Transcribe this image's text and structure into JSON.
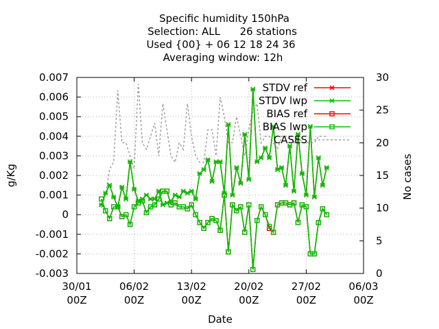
{
  "chart_data": {
    "type": "line",
    "title_lines": [
      "Specific humidity 150hPa",
      "Selection: ALL      26 stations",
      "Used {00} + 06 12 18 24 36",
      "Averaging window: 12h"
    ],
    "xlabel": "Date",
    "ylabel": "g/Kg",
    "y2label": "No cases",
    "x_range": [
      "2019-01-30T00:00",
      "2019-03-06T00:00"
    ],
    "ylim": [
      -0.003,
      0.007
    ],
    "y2lim": [
      0,
      30
    ],
    "x_ticks": [
      {
        "at": "2019-01-30T00:00",
        "line1": "30/01",
        "line2": "00Z"
      },
      {
        "at": "2019-02-06T00:00",
        "line1": "06/02",
        "line2": "00Z"
      },
      {
        "at": "2019-02-13T00:00",
        "line1": "13/02",
        "line2": "00Z"
      },
      {
        "at": "2019-02-20T00:00",
        "line1": "20/02",
        "line2": "00Z"
      },
      {
        "at": "2019-02-27T00:00",
        "line1": "27/02",
        "line2": "00Z"
      },
      {
        "at": "2019-03-06T00:00",
        "line1": "06/03",
        "line2": "00Z"
      }
    ],
    "y_ticks": [
      "-0.003",
      "-0.002",
      "-0.001",
      "0",
      "0.001",
      "0.002",
      "0.003",
      "0.004",
      "0.005",
      "0.006",
      "0.007"
    ],
    "y2_ticks": [
      "0",
      "5",
      "10",
      "15",
      "20",
      "25",
      "30"
    ],
    "grid": true,
    "legend_position": "top-right",
    "x": [
      "2019-02-02T00:00",
      "2019-02-02T12:00",
      "2019-02-03T00:00",
      "2019-02-03T12:00",
      "2019-02-04T00:00",
      "2019-02-04T12:00",
      "2019-02-05T00:00",
      "2019-02-05T12:00",
      "2019-02-06T00:00",
      "2019-02-06T12:00",
      "2019-02-07T00:00",
      "2019-02-07T12:00",
      "2019-02-08T00:00",
      "2019-02-08T12:00",
      "2019-02-09T00:00",
      "2019-02-09T12:00",
      "2019-02-10T00:00",
      "2019-02-10T12:00",
      "2019-02-11T00:00",
      "2019-02-11T12:00",
      "2019-02-12T00:00",
      "2019-02-12T12:00",
      "2019-02-13T00:00",
      "2019-02-13T12:00",
      "2019-02-14T00:00",
      "2019-02-14T12:00",
      "2019-02-15T00:00",
      "2019-02-15T12:00",
      "2019-02-16T00:00",
      "2019-02-16T12:00",
      "2019-02-17T00:00",
      "2019-02-17T12:00",
      "2019-02-18T00:00",
      "2019-02-18T12:00",
      "2019-02-19T00:00",
      "2019-02-19T12:00",
      "2019-02-20T00:00",
      "2019-02-20T12:00",
      "2019-02-21T00:00",
      "2019-02-21T12:00",
      "2019-02-22T00:00",
      "2019-02-22T12:00",
      "2019-02-23T00:00",
      "2019-02-23T12:00",
      "2019-02-24T00:00",
      "2019-02-24T12:00",
      "2019-02-25T00:00",
      "2019-02-25T12:00",
      "2019-02-26T00:00",
      "2019-02-26T12:00",
      "2019-02-27T00:00",
      "2019-02-27T12:00",
      "2019-02-28T00:00",
      "2019-02-28T12:00",
      "2019-03-01T00:00",
      "2019-03-01T12:00"
    ],
    "series": [
      {
        "name": "STDV ref",
        "color": "#ff0000",
        "marker": "asterisk",
        "axis": "y",
        "values": [
          0.0005,
          0.0011,
          0.0015,
          0.0009,
          0.0004,
          0.0014,
          0.0008,
          0.0027,
          0.0013,
          0.0007,
          0.0008,
          0.001,
          0.0008,
          0.0008,
          0.0012,
          0.0005,
          0.0006,
          0.0007,
          0.001,
          0.0009,
          0.0012,
          0.0011,
          0.0012,
          0.0008,
          0.0021,
          0.0023,
          0.0028,
          0.0017,
          0.0027,
          0.0027,
          0.0011,
          0.0046,
          0.001,
          0.0024,
          0.0016,
          0.0041,
          0.0018,
          0.0064,
          0.0027,
          0.0029,
          0.0034,
          0.0029,
          0.0045,
          0.0023,
          0.0024,
          0.0015,
          0.0035,
          0.0012,
          0.0041,
          0.0021,
          0.001,
          0.0045,
          0.0009,
          0.0029,
          0.0015,
          0.0024
        ]
      },
      {
        "name": "STDV lwp",
        "color": "#00c000",
        "marker": "asterisk",
        "axis": "y",
        "values": [
          0.0005,
          0.0011,
          0.0015,
          0.0009,
          0.0004,
          0.0014,
          0.0008,
          0.0027,
          0.0013,
          0.0007,
          0.0008,
          0.001,
          0.0008,
          0.0008,
          0.0012,
          0.0005,
          0.0006,
          0.0007,
          0.001,
          0.0009,
          0.0012,
          0.0011,
          0.0012,
          0.0008,
          0.0021,
          0.0023,
          0.0028,
          0.0017,
          0.0027,
          0.0027,
          0.0011,
          0.0046,
          0.001,
          0.0024,
          0.0016,
          0.0041,
          0.0018,
          0.0064,
          0.0027,
          0.0029,
          0.0034,
          0.0029,
          0.0045,
          0.0023,
          0.0024,
          0.0015,
          0.0035,
          0.0012,
          0.0041,
          0.0021,
          0.001,
          0.0045,
          0.0009,
          0.0029,
          0.0015,
          0.0024
        ]
      },
      {
        "name": "BIAS ref",
        "color": "#ff0000",
        "marker": "square",
        "axis": "y",
        "values": [
          0.0008,
          0.0002,
          -0.0002,
          0.0004,
          0.0004,
          -0.0001,
          0.0,
          -0.0005,
          0.0004,
          0.0006,
          0.0007,
          0.0001,
          0.0004,
          0.0005,
          0.0008,
          0.0012,
          0.0012,
          0.0005,
          0.0006,
          0.0004,
          0.0004,
          0.0003,
          0.0005,
          0.0,
          -0.0004,
          -0.0007,
          -0.0004,
          -0.0002,
          -0.0003,
          -0.0008,
          0.001,
          -0.0019,
          0.0005,
          0.0002,
          0.0004,
          -0.0009,
          0.0005,
          -0.0028,
          -0.0003,
          0.0004,
          0.0,
          -0.0007,
          -0.0009,
          0.0005,
          0.0006,
          0.0006,
          0.0005,
          0.0006,
          -0.0004,
          0.0005,
          0.0004,
          -0.002,
          -0.002,
          -0.0004,
          0.0003,
          0.0
        ]
      },
      {
        "name": "BIAS lwp",
        "color": "#00c000",
        "marker": "square",
        "axis": "y",
        "values": [
          0.0008,
          0.0002,
          -0.0002,
          0.0004,
          0.0004,
          -0.0001,
          0.0,
          -0.0005,
          0.0004,
          0.0006,
          0.0007,
          0.0001,
          0.0004,
          0.0005,
          0.0008,
          0.0012,
          0.0012,
          0.0005,
          0.0006,
          0.0004,
          0.0004,
          0.0003,
          0.0005,
          0.0,
          -0.0004,
          -0.0007,
          -0.0004,
          -0.0002,
          -0.0003,
          -0.0008,
          0.001,
          -0.0019,
          0.0005,
          0.0002,
          0.0004,
          -0.0009,
          0.0005,
          -0.0028,
          -0.0003,
          0.0004,
          0.0,
          -0.0006,
          -0.0009,
          0.0005,
          0.0006,
          0.0006,
          0.0005,
          0.0006,
          -0.0004,
          0.0005,
          0.0004,
          -0.002,
          -0.002,
          -0.0004,
          0.0003,
          0.0
        ]
      },
      {
        "name": "CASES",
        "color": "#a0a0a0",
        "marker": "none",
        "dashed": true,
        "axis": "y2",
        "values": [
          10,
          12,
          16,
          17,
          28,
          20,
          20,
          18,
          16,
          29,
          20,
          19,
          21,
          23,
          18,
          26,
          22,
          18,
          17,
          20,
          19,
          26,
          21,
          18,
          17,
          17,
          22,
          22,
          18,
          27,
          24,
          20,
          20,
          24,
          21,
          18,
          22,
          25,
          26,
          20,
          21,
          21,
          20,
          19,
          21,
          21,
          21,
          20,
          21,
          20,
          20,
          20,
          20,
          21,
          21,
          21
        ]
      }
    ]
  }
}
